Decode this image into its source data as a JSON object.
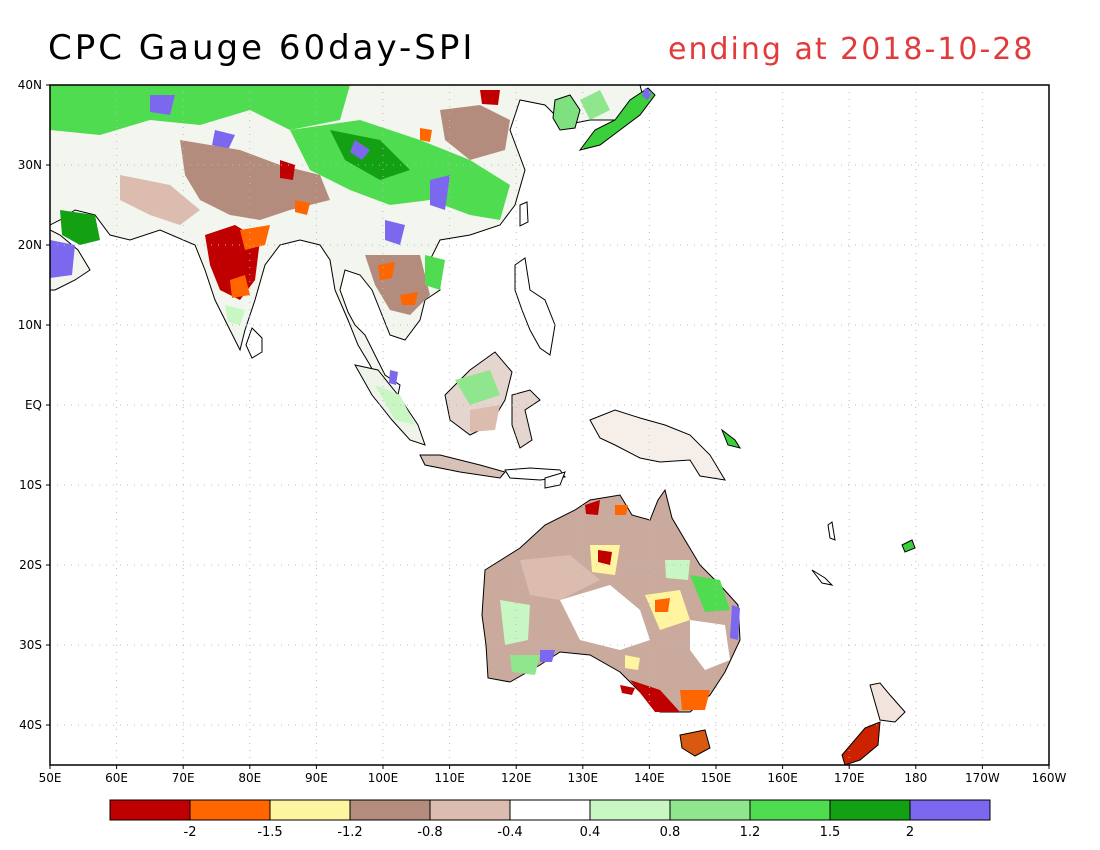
{
  "title": "CPC Gauge 60day-SPI",
  "subtitle": "ending at 2018-10-28",
  "map": {
    "lon_min": 50,
    "lon_max": 200,
    "lat_min": -45,
    "lat_max": 40,
    "lat_labels": [
      "40N",
      "30N",
      "20N",
      "10N",
      "EQ",
      "10S",
      "20S",
      "30S",
      "40S"
    ],
    "lon_labels": [
      "50E",
      "60E",
      "70E",
      "80E",
      "90E",
      "100E",
      "110E",
      "120E",
      "130E",
      "140E",
      "150E",
      "160E",
      "170E",
      "180",
      "170W",
      "160W"
    ]
  },
  "legend": {
    "colors": [
      "#c00000",
      "#ff6600",
      "#fff5a0",
      "#b48c7d",
      "#dcbcae",
      "#ffffff",
      "#c8f7c4",
      "#8fe68c",
      "#50dc50",
      "#13a013",
      "#7b68ee"
    ],
    "labels": [
      "-2",
      "-1.5",
      "-1.2",
      "-0.8",
      "-0.4",
      "0.4",
      "0.8",
      "1.2",
      "1.5",
      "2"
    ]
  }
}
